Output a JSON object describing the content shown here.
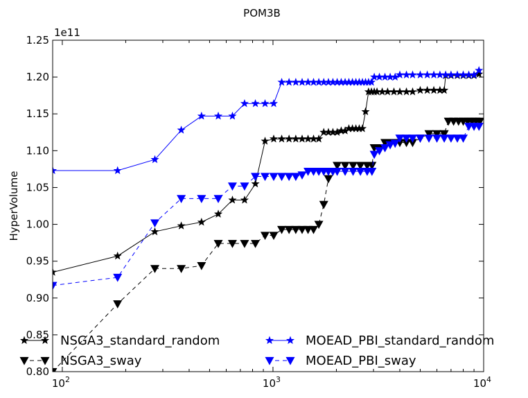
{
  "chart_data": {
    "type": "line",
    "title": "POM3B",
    "xlabel": "",
    "ylabel": "HyperVolume",
    "y_multiplier_label": "1e11",
    "xscale": "log",
    "xlim": [
      90,
      10000
    ],
    "ylim": [
      0.8,
      1.25
    ],
    "grid": false,
    "legend_position": "lower-left",
    "x_ticks": [
      {
        "value": 100,
        "base": "10",
        "exp": "2"
      },
      {
        "value": 1000,
        "base": "10",
        "exp": "3"
      },
      {
        "value": 10000,
        "base": "10",
        "exp": "4"
      }
    ],
    "y_ticks": [
      "0.80",
      "0.85",
      "0.90",
      "0.95",
      "1.00",
      "1.05",
      "1.10",
      "1.15",
      "1.20",
      "1.25"
    ],
    "series": [
      {
        "name": "NSGA3_standard_random",
        "color": "#000000",
        "marker": "star",
        "dashed": false,
        "points": [
          [
            90,
            0.935
          ],
          [
            183,
            0.957
          ],
          [
            275,
            0.99
          ],
          [
            367,
            0.998
          ],
          [
            458,
            1.003
          ],
          [
            550,
            1.014
          ],
          [
            642,
            1.033
          ],
          [
            733,
            1.033
          ],
          [
            825,
            1.055
          ],
          [
            917,
            1.113
          ],
          [
            1008,
            1.116
          ],
          [
            1100,
            1.116
          ],
          [
            1192,
            1.116
          ],
          [
            1283,
            1.116
          ],
          [
            1375,
            1.116
          ],
          [
            1467,
            1.116
          ],
          [
            1558,
            1.116
          ],
          [
            1650,
            1.116
          ],
          [
            1742,
            1.125
          ],
          [
            1833,
            1.125
          ],
          [
            1925,
            1.125
          ],
          [
            2017,
            1.125
          ],
          [
            2108,
            1.127
          ],
          [
            2200,
            1.127
          ],
          [
            2292,
            1.13
          ],
          [
            2383,
            1.13
          ],
          [
            2475,
            1.13
          ],
          [
            2567,
            1.13
          ],
          [
            2658,
            1.13
          ],
          [
            2750,
            1.153
          ],
          [
            2842,
            1.18
          ],
          [
            2933,
            1.18
          ],
          [
            3025,
            1.18
          ],
          [
            3117,
            1.18
          ],
          [
            3300,
            1.18
          ],
          [
            3500,
            1.18
          ],
          [
            3750,
            1.18
          ],
          [
            4000,
            1.18
          ],
          [
            4300,
            1.18
          ],
          [
            4600,
            1.18
          ],
          [
            5000,
            1.182
          ],
          [
            5400,
            1.182
          ],
          [
            5800,
            1.182
          ],
          [
            6200,
            1.182
          ],
          [
            6500,
            1.182
          ],
          [
            6600,
            1.202
          ],
          [
            7000,
            1.202
          ],
          [
            7500,
            1.202
          ],
          [
            8000,
            1.202
          ],
          [
            8500,
            1.202
          ],
          [
            9000,
            1.202
          ],
          [
            9500,
            1.204
          ]
        ]
      },
      {
        "name": "NSGA3_sway",
        "color": "#000000",
        "marker": "triangle-down",
        "dashed": true,
        "points": [
          [
            90,
            0.8
          ],
          [
            183,
            0.892
          ],
          [
            275,
            0.94
          ],
          [
            367,
            0.94
          ],
          [
            458,
            0.944
          ],
          [
            550,
            0.974
          ],
          [
            642,
            0.974
          ],
          [
            733,
            0.974
          ],
          [
            825,
            0.974
          ],
          [
            917,
            0.985
          ],
          [
            1008,
            0.985
          ],
          [
            1100,
            0.993
          ],
          [
            1192,
            0.993
          ],
          [
            1283,
            0.993
          ],
          [
            1375,
            0.993
          ],
          [
            1467,
            0.993
          ],
          [
            1558,
            0.993
          ],
          [
            1650,
            1.0
          ],
          [
            1742,
            1.027
          ],
          [
            1833,
            1.062
          ],
          [
            1925,
            1.072
          ],
          [
            2017,
            1.08
          ],
          [
            2200,
            1.08
          ],
          [
            2400,
            1.08
          ],
          [
            2600,
            1.08
          ],
          [
            2800,
            1.08
          ],
          [
            2950,
            1.08
          ],
          [
            3025,
            1.104
          ],
          [
            3200,
            1.104
          ],
          [
            3400,
            1.111
          ],
          [
            3600,
            1.111
          ],
          [
            3800,
            1.111
          ],
          [
            4000,
            1.111
          ],
          [
            4300,
            1.111
          ],
          [
            4600,
            1.111
          ],
          [
            5000,
            1.117
          ],
          [
            5500,
            1.123
          ],
          [
            6000,
            1.123
          ],
          [
            6500,
            1.123
          ],
          [
            6800,
            1.14
          ],
          [
            7200,
            1.14
          ],
          [
            7600,
            1.14
          ],
          [
            8000,
            1.14
          ],
          [
            8400,
            1.14
          ],
          [
            8800,
            1.14
          ],
          [
            9200,
            1.14
          ],
          [
            9600,
            1.14
          ]
        ]
      },
      {
        "name": "MOEAD_PBI_standard_random",
        "color": "#0000ff",
        "marker": "star",
        "dashed": false,
        "points": [
          [
            90,
            1.073
          ],
          [
            183,
            1.073
          ],
          [
            275,
            1.088
          ],
          [
            367,
            1.128
          ],
          [
            458,
            1.147
          ],
          [
            550,
            1.147
          ],
          [
            642,
            1.147
          ],
          [
            733,
            1.164
          ],
          [
            825,
            1.164
          ],
          [
            917,
            1.164
          ],
          [
            1008,
            1.164
          ],
          [
            1100,
            1.193
          ],
          [
            1192,
            1.193
          ],
          [
            1283,
            1.193
          ],
          [
            1375,
            1.193
          ],
          [
            1467,
            1.193
          ],
          [
            1558,
            1.193
          ],
          [
            1650,
            1.193
          ],
          [
            1742,
            1.193
          ],
          [
            1833,
            1.193
          ],
          [
            1925,
            1.193
          ],
          [
            2017,
            1.193
          ],
          [
            2108,
            1.193
          ],
          [
            2200,
            1.193
          ],
          [
            2292,
            1.193
          ],
          [
            2383,
            1.193
          ],
          [
            2475,
            1.193
          ],
          [
            2567,
            1.193
          ],
          [
            2658,
            1.193
          ],
          [
            2750,
            1.193
          ],
          [
            2842,
            1.193
          ],
          [
            2933,
            1.193
          ],
          [
            3025,
            1.2
          ],
          [
            3200,
            1.2
          ],
          [
            3400,
            1.2
          ],
          [
            3600,
            1.2
          ],
          [
            3800,
            1.2
          ],
          [
            4000,
            1.203
          ],
          [
            4300,
            1.203
          ],
          [
            4600,
            1.203
          ],
          [
            5000,
            1.203
          ],
          [
            5400,
            1.203
          ],
          [
            5800,
            1.203
          ],
          [
            6200,
            1.203
          ],
          [
            6600,
            1.203
          ],
          [
            7000,
            1.203
          ],
          [
            7500,
            1.203
          ],
          [
            8000,
            1.203
          ],
          [
            8500,
            1.203
          ],
          [
            9000,
            1.203
          ],
          [
            9500,
            1.209
          ]
        ]
      },
      {
        "name": "MOEAD_PBI_sway",
        "color": "#0000ff",
        "marker": "triangle-down",
        "dashed": true,
        "points": [
          [
            90,
            0.917
          ],
          [
            183,
            0.928
          ],
          [
            275,
            1.002
          ],
          [
            367,
            1.035
          ],
          [
            458,
            1.035
          ],
          [
            550,
            1.035
          ],
          [
            642,
            1.052
          ],
          [
            733,
            1.052
          ],
          [
            825,
            1.065
          ],
          [
            917,
            1.065
          ],
          [
            1008,
            1.065
          ],
          [
            1100,
            1.065
          ],
          [
            1192,
            1.065
          ],
          [
            1283,
            1.065
          ],
          [
            1375,
            1.067
          ],
          [
            1467,
            1.072
          ],
          [
            1558,
            1.072
          ],
          [
            1650,
            1.072
          ],
          [
            1742,
            1.072
          ],
          [
            1833,
            1.072
          ],
          [
            1925,
            1.072
          ],
          [
            2017,
            1.072
          ],
          [
            2200,
            1.072
          ],
          [
            2400,
            1.072
          ],
          [
            2600,
            1.072
          ],
          [
            2800,
            1.072
          ],
          [
            2950,
            1.072
          ],
          [
            3025,
            1.095
          ],
          [
            3200,
            1.1
          ],
          [
            3400,
            1.104
          ],
          [
            3600,
            1.108
          ],
          [
            3800,
            1.11
          ],
          [
            4000,
            1.117
          ],
          [
            4300,
            1.117
          ],
          [
            4600,
            1.117
          ],
          [
            5000,
            1.117
          ],
          [
            5500,
            1.117
          ],
          [
            6000,
            1.117
          ],
          [
            6500,
            1.117
          ],
          [
            7000,
            1.117
          ],
          [
            7500,
            1.117
          ],
          [
            8000,
            1.117
          ],
          [
            8500,
            1.133
          ],
          [
            9000,
            1.133
          ],
          [
            9500,
            1.133
          ]
        ]
      }
    ]
  }
}
